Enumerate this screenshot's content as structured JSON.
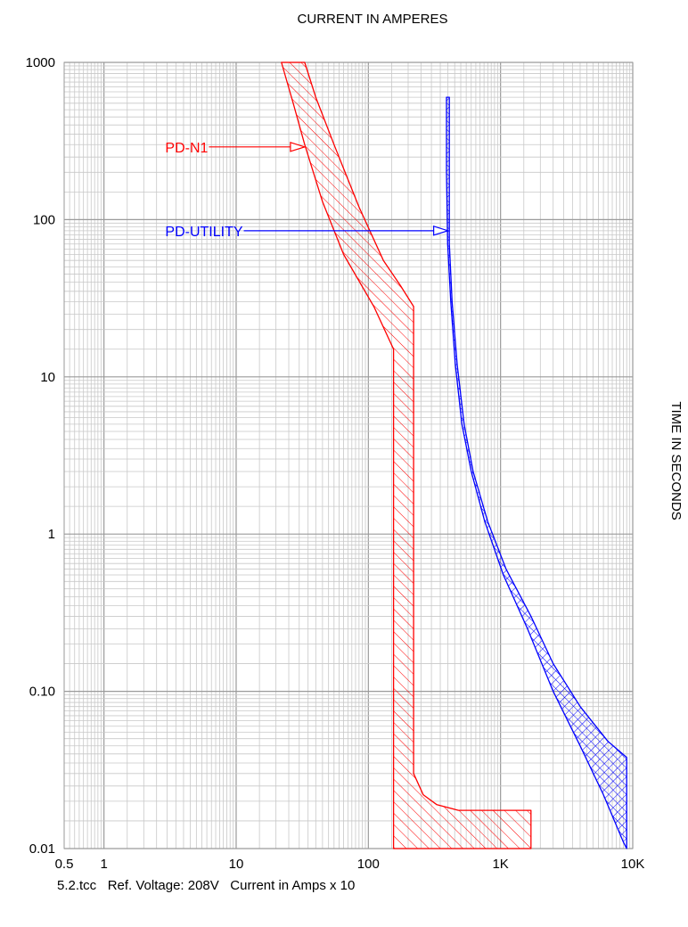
{
  "chart_data": {
    "type": "line",
    "title": "CURRENT IN AMPERES",
    "xlabel": "CURRENT IN AMPERES",
    "ylabel": "TIME IN SECONDS",
    "x_scale": "log",
    "y_scale": "log",
    "xlim": [
      0.5,
      10000
    ],
    "ylim": [
      0.01,
      1000
    ],
    "grid": true,
    "x_tick_labels": [
      {
        "value": 0.5,
        "label": "0.5"
      },
      {
        "value": 1,
        "label": "1"
      },
      {
        "value": 10,
        "label": "10"
      },
      {
        "value": 100,
        "label": "100"
      },
      {
        "value": 1000,
        "label": "1K"
      },
      {
        "value": 10000,
        "label": "10K"
      }
    ],
    "y_tick_labels": [
      {
        "value": 1000,
        "label": "1000"
      },
      {
        "value": 100,
        "label": "100"
      },
      {
        "value": 10,
        "label": "10"
      },
      {
        "value": 1,
        "label": "1"
      },
      {
        "value": 0.1,
        "label": "0.10"
      },
      {
        "value": 0.01,
        "label": "0.01"
      }
    ],
    "footer": "5.2.tcc   Ref. Voltage: 208V   Current in Amps x 10",
    "series": [
      {
        "name": "PD-N1",
        "color": "#ff0000",
        "fill": "hatch",
        "band": [
          [
            22,
            1000
          ],
          [
            33,
            1000
          ],
          [
            40,
            600
          ],
          [
            55,
            300
          ],
          [
            85,
            120
          ],
          [
            130,
            55
          ],
          [
            175,
            38
          ],
          [
            220,
            28
          ],
          [
            220,
            0.03
          ],
          [
            260,
            0.022
          ],
          [
            330,
            0.019
          ],
          [
            480,
            0.0175
          ],
          [
            1700,
            0.0175
          ],
          [
            1700,
            0.01
          ],
          [
            155,
            0.01
          ],
          [
            155,
            15
          ],
          [
            110,
            28
          ],
          [
            65,
            60
          ],
          [
            45,
            130
          ],
          [
            33,
            300
          ],
          [
            27,
            550
          ]
        ],
        "label_at": [
          3,
          290
        ],
        "arrow_to": [
          33,
          290
        ]
      },
      {
        "name": "PD-UTILITY",
        "color": "#0000ff",
        "fill": "crosshatch",
        "band": [
          [
            390,
            600
          ],
          [
            410,
            600
          ],
          [
            410,
            70
          ],
          [
            430,
            30
          ],
          [
            470,
            12
          ],
          [
            530,
            5
          ],
          [
            620,
            2.5
          ],
          [
            800,
            1.2
          ],
          [
            1100,
            0.6
          ],
          [
            1700,
            0.3
          ],
          [
            2500,
            0.15
          ],
          [
            4000,
            0.08
          ],
          [
            6500,
            0.048
          ],
          [
            9000,
            0.038
          ],
          [
            9000,
            0.01
          ],
          [
            8500,
            0.011
          ],
          [
            6000,
            0.022
          ],
          [
            4000,
            0.045
          ],
          [
            2500,
            0.1
          ],
          [
            1600,
            0.25
          ],
          [
            1050,
            0.55
          ],
          [
            760,
            1.2
          ],
          [
            600,
            2.5
          ],
          [
            510,
            5
          ],
          [
            455,
            12
          ],
          [
            420,
            30
          ],
          [
            398,
            70
          ],
          [
            390,
            200
          ]
        ],
        "label_at": [
          3,
          85
        ],
        "arrow_to": [
          400,
          85
        ]
      }
    ]
  }
}
